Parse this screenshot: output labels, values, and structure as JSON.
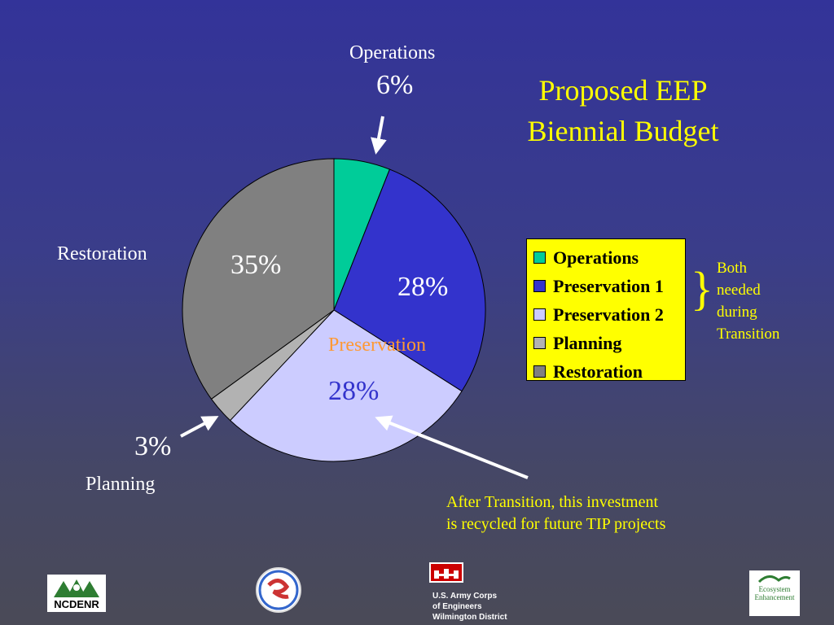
{
  "title": {
    "line1": "Proposed EEP",
    "line2": "Biennial Budget"
  },
  "chart_data": {
    "type": "pie",
    "title": "Proposed EEP Biennial Budget",
    "slices": [
      {
        "name": "Operations",
        "value": 6,
        "color": "#00cc99"
      },
      {
        "name": "Preservation 1",
        "value": 28,
        "color": "#3333cc"
      },
      {
        "name": "Preservation 2",
        "value": 28,
        "color": "#ccccff"
      },
      {
        "name": "Planning",
        "value": 3,
        "color": "#b2b2b2"
      },
      {
        "name": "Restoration",
        "value": 35,
        "color": "#808080"
      }
    ],
    "start_angle": "12 o'clock",
    "direction": "clockwise",
    "legend_position": "right"
  },
  "labels": {
    "operations_name": "Operations",
    "operations_pct": "6%",
    "restoration_name": "Restoration",
    "restoration_pct": "35%",
    "preservation1_pct": "28%",
    "preservation_name": "Preservation",
    "preservation2_pct": "28%",
    "planning_pct": "3%",
    "planning_name": "Planning"
  },
  "legend": {
    "items": [
      {
        "label": "Operations",
        "color": "#00cc99"
      },
      {
        "label": "Preservation 1",
        "color": "#3333cc"
      },
      {
        "label": "Preservation 2",
        "color": "#ccccff"
      },
      {
        "label": "Planning",
        "color": "#b2b2b2"
      },
      {
        "label": "Restoration",
        "color": "#808080"
      }
    ]
  },
  "notes": {
    "brace": "}",
    "both_line1": "Both",
    "both_line2": "needed",
    "both_line3": "during",
    "both_line4": "Transition",
    "recycle_line1": "After Transition, this investment",
    "recycle_line2": "is recycled for future TIP projects"
  },
  "logos": {
    "ncdenr": "NCDENR",
    "usace_line1": "U.S. Army Corps",
    "usace_line2": "of Engineers",
    "usace_line3": "Wilmington District",
    "eco_line1": "Ecosystem",
    "eco_line2": "Enhancement"
  }
}
